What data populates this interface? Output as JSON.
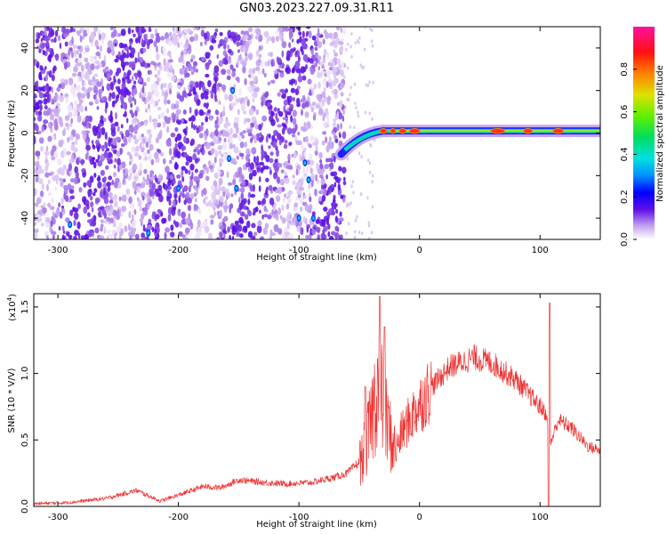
{
  "title": "GN03.2023.227.09.31.R11",
  "chart_data": [
    {
      "type": "heatmap",
      "xlabel": "Height of straight line (km)",
      "ylabel": "Frequency (Hz)",
      "xlim": [
        -320,
        150
      ],
      "ylim": [
        -50,
        50
      ],
      "xticks": [
        -300,
        -200,
        -100,
        0,
        100
      ],
      "yticks": [
        -40,
        -20,
        0,
        20,
        40
      ],
      "colorbar": {
        "label": "Normalized spectral amplitude",
        "range": [
          0,
          1
        ],
        "ticks": [
          "0.0",
          "0.2",
          "0.4",
          "0.6",
          "0.8"
        ]
      },
      "description_values": {
        "noise_region_x": [
          -320,
          -62
        ],
        "signal_line_frequency": 1,
        "signal_start_x": -65,
        "peak_amplitude": 0.9
      }
    },
    {
      "type": "line",
      "xlabel": "Height of straight line (km)",
      "ylabel": "SNR (10 * V/V)",
      "scale_label": "(x10",
      "scale_exp": "4",
      "scale_close": ")",
      "xlim": [
        -320,
        150
      ],
      "ylim": [
        0,
        1.6
      ],
      "xticks": [
        -300,
        -200,
        -100,
        0,
        100
      ],
      "yticks": [
        "0.0",
        "0.5",
        "1.0",
        "1.5"
      ],
      "color": "#ee3333",
      "envelope": [
        [
          -320,
          0.02
        ],
        [
          -290,
          0.03
        ],
        [
          -260,
          0.06
        ],
        [
          -235,
          0.12
        ],
        [
          -225,
          0.08
        ],
        [
          -215,
          0.04
        ],
        [
          -195,
          0.1
        ],
        [
          -180,
          0.15
        ],
        [
          -165,
          0.14
        ],
        [
          -150,
          0.2
        ],
        [
          -130,
          0.18
        ],
        [
          -110,
          0.17
        ],
        [
          -90,
          0.18
        ],
        [
          -70,
          0.22
        ],
        [
          -60,
          0.25
        ],
        [
          -48,
          0.35
        ],
        [
          -42,
          0.55
        ],
        [
          -38,
          0.75
        ],
        [
          -34,
          0.95
        ],
        [
          -28,
          0.65
        ],
        [
          -20,
          0.4
        ],
        [
          -15,
          0.55
        ],
        [
          -5,
          0.7
        ],
        [
          10,
          0.9
        ],
        [
          25,
          1.05
        ],
        [
          45,
          1.12
        ],
        [
          60,
          1.08
        ],
        [
          80,
          0.95
        ],
        [
          95,
          0.8
        ],
        [
          105,
          0.7
        ],
        [
          108,
          0.45
        ],
        [
          115,
          0.65
        ],
        [
          125,
          0.6
        ],
        [
          140,
          0.45
        ],
        [
          150,
          0.42
        ]
      ],
      "spikes": [
        [
          -33,
          1.58
        ],
        [
          -29,
          1.35
        ],
        [
          108,
          1.53
        ],
        [
          107,
          0.0
        ],
        [
          -45,
          0.9
        ]
      ]
    }
  ]
}
